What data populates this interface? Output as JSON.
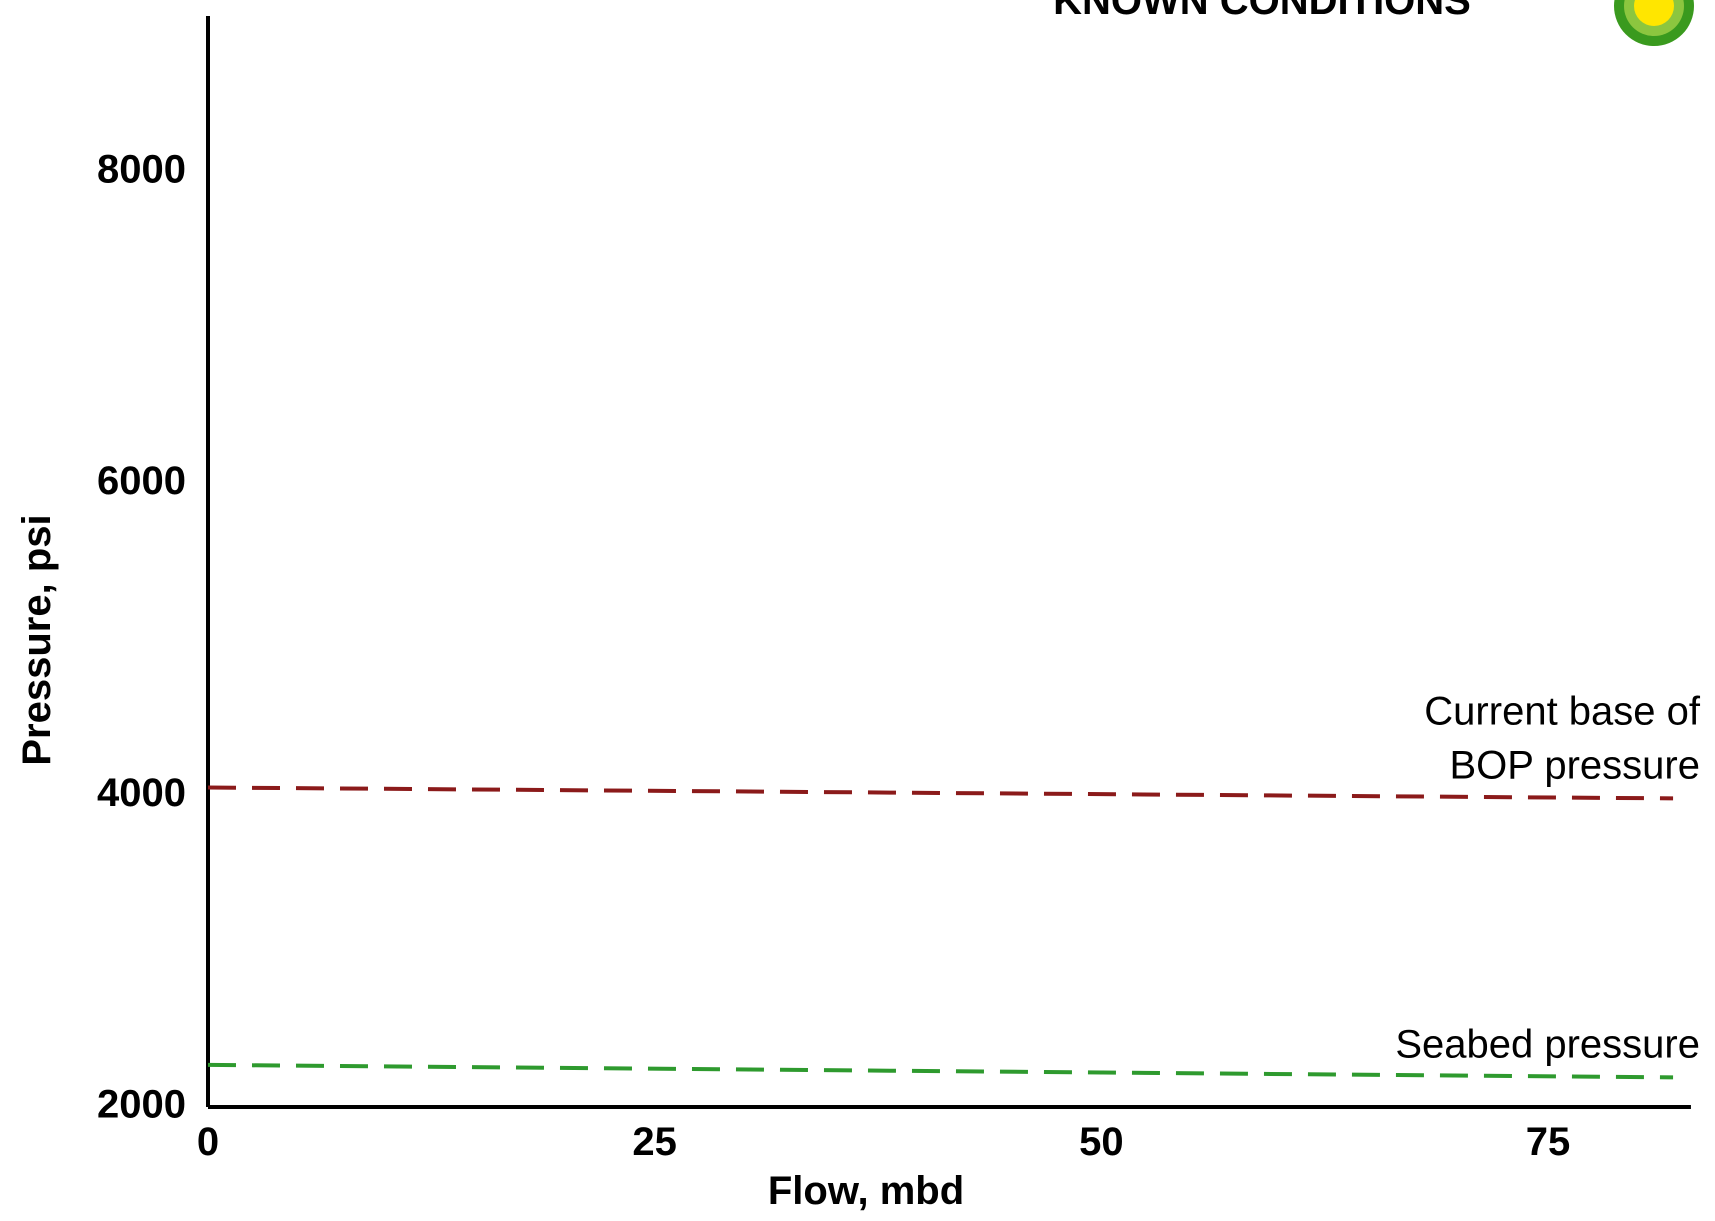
{
  "chart_data": {
    "type": "line",
    "title": "KNOWN CONDITIONS",
    "x_label": "Flow, mbd",
    "y_label": "Pressure, psi",
    "x": [
      0,
      82
    ],
    "series": [
      {
        "name": "Current base of BOP pressure",
        "color": "#8b1a1a",
        "values": [
          4050,
          3980
        ]
      },
      {
        "name": "Seabed pressure",
        "color": "#2e9a2e",
        "values": [
          2270,
          2190
        ]
      }
    ],
    "annotations": [
      {
        "lines": [
          "Current base of",
          "BOP pressure"
        ]
      },
      {
        "lines": [
          "Seabed pressure"
        ]
      }
    ],
    "xlim": [
      0,
      83
    ],
    "xticks": [
      0,
      25,
      50,
      75
    ],
    "ylim": [
      2000,
      9000
    ],
    "yticks": [
      2000,
      4000,
      6000,
      8000
    ],
    "dashed": true,
    "grid": false
  }
}
